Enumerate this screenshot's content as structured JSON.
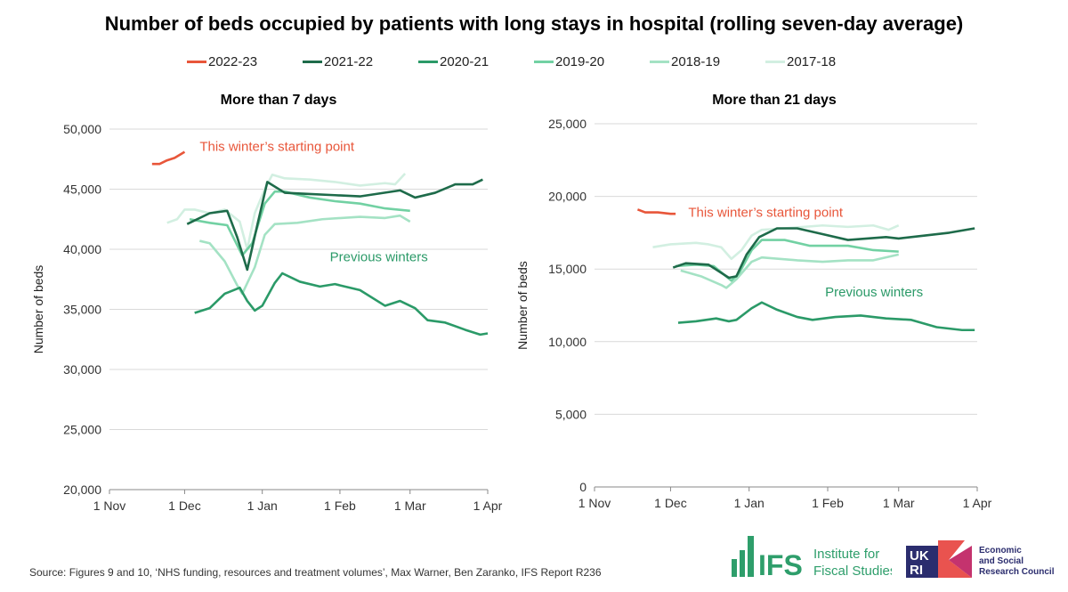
{
  "title": "Number of beds occupied by patients with long stays in hospital (rolling seven-day average)",
  "source": "Source: Figures 9 and 10, ‘NHS funding, resources and treatment volumes’, Max Warner, Ben Zaranko, IFS Report R236",
  "logos": {
    "ifs": "IFS Institute for Fiscal Studies",
    "esrc": "UKRI Economic and Social Research Council",
    "ifs_short": "IFS",
    "ifs_l1": "Institute for",
    "ifs_l2": "Fiscal Studies",
    "esrc_l1": "Economic",
    "esrc_l2": "and Social",
    "esrc_l3": "Research Council"
  },
  "legend": [
    {
      "name": "2022-23",
      "color": "#e8563a"
    },
    {
      "name": "2021-22",
      "color": "#1e6b4a"
    },
    {
      "name": "2020-21",
      "color": "#2b9a68"
    },
    {
      "name": "2019-20",
      "color": "#72d1a3"
    },
    {
      "name": "2018-19",
      "color": "#a4e2c4"
    },
    {
      "name": "2017-18",
      "color": "#d2efe1"
    }
  ],
  "chart_data": [
    {
      "type": "line",
      "title": "More than 7 days",
      "xlabel": "",
      "ylabel": "Number of beds",
      "x_unit": "days since 1 Nov",
      "xticks": [
        {
          "v": 0,
          "l": "1 Nov"
        },
        {
          "v": 30,
          "l": "1 Dec"
        },
        {
          "v": 61,
          "l": "1 Jan"
        },
        {
          "v": 92,
          "l": "1 Feb"
        },
        {
          "v": 120,
          "l": "1 Mar"
        },
        {
          "v": 151,
          "l": "1 Apr"
        }
      ],
      "yticks": [
        "20,000",
        "25,000",
        "30,000",
        "35,000",
        "40,000",
        "45,000",
        "50,000"
      ],
      "ylim": [
        20000,
        50000
      ],
      "grid": true,
      "annotations": [
        {
          "text": "This winter’s starting point",
          "x": 36,
          "y": 48200,
          "color": "#e8563a"
        },
        {
          "text": "Previous winters",
          "x": 88,
          "y": 39000,
          "color": "#2b9a68"
        }
      ],
      "series": [
        {
          "name": "2022-23",
          "points": [
            [
              17,
              47100
            ],
            [
              20,
              47100
            ],
            [
              23,
              47400
            ],
            [
              26,
              47600
            ],
            [
              30,
              48100
            ]
          ]
        },
        {
          "name": "2021-22",
          "points": [
            [
              31,
              42100
            ],
            [
              40,
              43000
            ],
            [
              47,
              43200
            ],
            [
              51,
              41000
            ],
            [
              55,
              38300
            ],
            [
              59,
              42000
            ],
            [
              63,
              45600
            ],
            [
              70,
              44700
            ],
            [
              80,
              44600
            ],
            [
              90,
              44500
            ],
            [
              100,
              44400
            ],
            [
              116,
              44900
            ],
            [
              122,
              44300
            ],
            [
              130,
              44700
            ],
            [
              138,
              45400
            ],
            [
              145,
              45400
            ],
            [
              149,
              45800
            ]
          ]
        },
        {
          "name": "2020-21",
          "points": [
            [
              34,
              34700
            ],
            [
              40,
              35100
            ],
            [
              46,
              36300
            ],
            [
              52,
              36800
            ],
            [
              55,
              35700
            ],
            [
              58,
              34900
            ],
            [
              61,
              35300
            ],
            [
              66,
              37200
            ],
            [
              69,
              38000
            ],
            [
              76,
              37300
            ],
            [
              84,
              36900
            ],
            [
              90,
              37100
            ],
            [
              100,
              36600
            ],
            [
              110,
              35300
            ],
            [
              116,
              35700
            ],
            [
              122,
              35100
            ],
            [
              127,
              34100
            ],
            [
              134,
              33900
            ],
            [
              142,
              33300
            ],
            [
              148,
              32900
            ],
            [
              151,
              33000
            ]
          ]
        },
        {
          "name": "2019-20",
          "points": [
            [
              32,
              42500
            ],
            [
              40,
              42200
            ],
            [
              47,
              42000
            ],
            [
              53,
              39500
            ],
            [
              57,
              40500
            ],
            [
              62,
              43800
            ],
            [
              66,
              44800
            ],
            [
              70,
              44800
            ],
            [
              80,
              44300
            ],
            [
              90,
              44000
            ],
            [
              100,
              43800
            ],
            [
              110,
              43400
            ],
            [
              120,
              43200
            ]
          ]
        },
        {
          "name": "2018-19",
          "points": [
            [
              36,
              40700
            ],
            [
              40,
              40500
            ],
            [
              46,
              39000
            ],
            [
              51,
              37000
            ],
            [
              53,
              36300
            ],
            [
              58,
              38500
            ],
            [
              62,
              41200
            ],
            [
              66,
              42100
            ],
            [
              75,
              42200
            ],
            [
              85,
              42500
            ],
            [
              100,
              42700
            ],
            [
              110,
              42600
            ],
            [
              116,
              42800
            ],
            [
              120,
              42300
            ]
          ]
        },
        {
          "name": "2017-18",
          "points": [
            [
              23,
              42200
            ],
            [
              27,
              42500
            ],
            [
              30,
              43300
            ],
            [
              34,
              43300
            ],
            [
              40,
              43000
            ],
            [
              46,
              43300
            ],
            [
              52,
              42300
            ],
            [
              55,
              40000
            ],
            [
              58,
              43000
            ],
            [
              62,
              45000
            ],
            [
              65,
              46200
            ],
            [
              70,
              45900
            ],
            [
              80,
              45800
            ],
            [
              90,
              45600
            ],
            [
              100,
              45300
            ],
            [
              110,
              45500
            ],
            [
              114,
              45400
            ],
            [
              118,
              46300
            ]
          ]
        }
      ]
    },
    {
      "type": "line",
      "title": "More than 21 days",
      "xlabel": "",
      "ylabel": "Number of beds",
      "x_unit": "days since 1 Nov",
      "xticks": [
        {
          "v": 0,
          "l": "1 Nov"
        },
        {
          "v": 30,
          "l": "1 Dec"
        },
        {
          "v": 61,
          "l": "1 Jan"
        },
        {
          "v": 92,
          "l": "1 Feb"
        },
        {
          "v": 120,
          "l": "1 Mar"
        },
        {
          "v": 151,
          "l": "1 Apr"
        }
      ],
      "yticks": [
        "0",
        "5,000",
        "10,000",
        "15,000",
        "20,000",
        "25,000"
      ],
      "ylim": [
        0,
        25000
      ],
      "grid": true,
      "annotations": [
        {
          "text": "This winter’s starting point",
          "x": 37,
          "y": 18600,
          "color": "#e8563a"
        },
        {
          "text": "Previous winters",
          "x": 91,
          "y": 13100,
          "color": "#2b9a68"
        }
      ],
      "series": [
        {
          "name": "2022-23",
          "points": [
            [
              17,
              19100
            ],
            [
              20,
              18900
            ],
            [
              25,
              18900
            ],
            [
              30,
              18800
            ],
            [
              32,
              18800
            ]
          ]
        },
        {
          "name": "2021-22",
          "points": [
            [
              31,
              15100
            ],
            [
              36,
              15400
            ],
            [
              45,
              15300
            ],
            [
              53,
              14400
            ],
            [
              56,
              14500
            ],
            [
              60,
              16000
            ],
            [
              65,
              17200
            ],
            [
              72,
              17800
            ],
            [
              80,
              17800
            ],
            [
              90,
              17400
            ],
            [
              100,
              17000
            ],
            [
              115,
              17200
            ],
            [
              120,
              17100
            ],
            [
              130,
              17300
            ],
            [
              140,
              17500
            ],
            [
              150,
              17800
            ]
          ]
        },
        {
          "name": "2020-21",
          "points": [
            [
              33,
              11300
            ],
            [
              40,
              11400
            ],
            [
              48,
              11600
            ],
            [
              53,
              11400
            ],
            [
              56,
              11500
            ],
            [
              62,
              12300
            ],
            [
              66,
              12700
            ],
            [
              72,
              12200
            ],
            [
              80,
              11700
            ],
            [
              86,
              11500
            ],
            [
              95,
              11700
            ],
            [
              105,
              11800
            ],
            [
              115,
              11600
            ],
            [
              125,
              11500
            ],
            [
              135,
              11000
            ],
            [
              145,
              10800
            ],
            [
              150,
              10800
            ]
          ]
        },
        {
          "name": "2019-20",
          "points": [
            [
              32,
              15200
            ],
            [
              40,
              15300
            ],
            [
              47,
              15200
            ],
            [
              54,
              14200
            ],
            [
              57,
              14700
            ],
            [
              62,
              16300
            ],
            [
              66,
              17000
            ],
            [
              75,
              17000
            ],
            [
              85,
              16600
            ],
            [
              100,
              16600
            ],
            [
              110,
              16300
            ],
            [
              120,
              16200
            ]
          ]
        },
        {
          "name": "2018-19",
          "points": [
            [
              34,
              14900
            ],
            [
              42,
              14500
            ],
            [
              50,
              13900
            ],
            [
              52,
              13700
            ],
            [
              56,
              14300
            ],
            [
              62,
              15500
            ],
            [
              66,
              15800
            ],
            [
              80,
              15600
            ],
            [
              90,
              15500
            ],
            [
              100,
              15600
            ],
            [
              110,
              15600
            ],
            [
              120,
              16000
            ]
          ]
        },
        {
          "name": "2017-18",
          "points": [
            [
              23,
              16500
            ],
            [
              30,
              16700
            ],
            [
              40,
              16800
            ],
            [
              45,
              16700
            ],
            [
              50,
              16500
            ],
            [
              54,
              15700
            ],
            [
              58,
              16300
            ],
            [
              62,
              17300
            ],
            [
              66,
              17700
            ],
            [
              75,
              17800
            ],
            [
              90,
              18000
            ],
            [
              100,
              17900
            ],
            [
              110,
              18000
            ],
            [
              116,
              17700
            ],
            [
              120,
              18000
            ]
          ]
        }
      ]
    }
  ]
}
